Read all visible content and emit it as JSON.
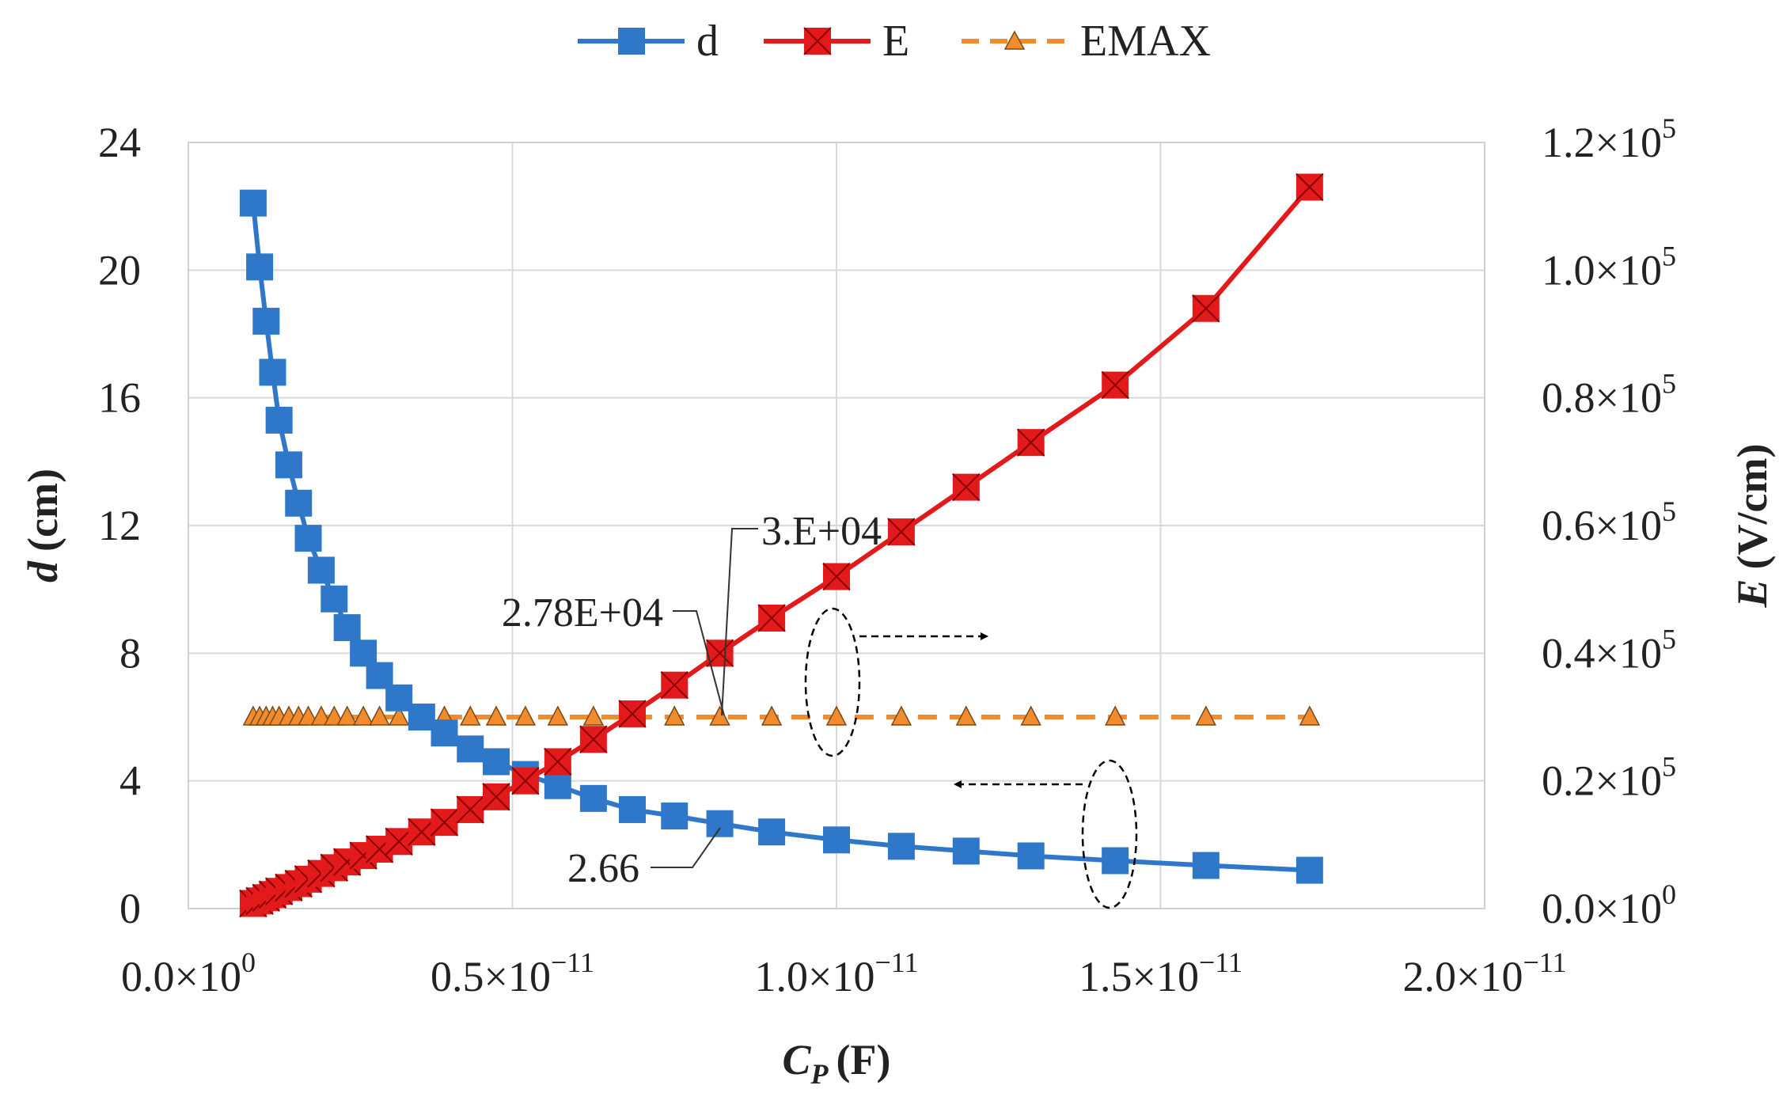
{
  "chart_data": {
    "type": "line",
    "title": "",
    "xlabel": {
      "main": "C",
      "sub": "P",
      "unit": "(F)"
    },
    "ylabel_left": {
      "main": "d",
      "unit": "(cm)"
    },
    "ylabel_right": {
      "main": "E",
      "unit": "(V/cm)"
    },
    "xlim": [
      0,
      2e-11
    ],
    "ylim_left": [
      0,
      24
    ],
    "ylim_right": [
      0,
      120000
    ],
    "grid": true,
    "legend_position": "top-center",
    "x_ticks": [
      {
        "mant": "0.0",
        "exp": "0"
      },
      {
        "mant": "0.5",
        "exp": "−11"
      },
      {
        "mant": "1.0",
        "exp": "−11"
      },
      {
        "mant": "1.5",
        "exp": "−11"
      },
      {
        "mant": "2.0",
        "exp": "−11"
      }
    ],
    "x_tick_values": [
      0,
      5e-12,
      1e-11,
      1.5e-11,
      2e-11
    ],
    "y_left_ticks": [
      "0",
      "4",
      "8",
      "12",
      "16",
      "20",
      "24"
    ],
    "y_left_tick_values": [
      0,
      4,
      8,
      12,
      16,
      20,
      24
    ],
    "y_right_ticks": [
      {
        "mant": "0.0",
        "exp": "0"
      },
      {
        "mant": "0.2",
        "exp": "5"
      },
      {
        "mant": "0.4",
        "exp": "5"
      },
      {
        "mant": "0.6",
        "exp": "5"
      },
      {
        "mant": "0.8",
        "exp": "5"
      },
      {
        "mant": "1.0",
        "exp": "5"
      },
      {
        "mant": "1.2",
        "exp": "5"
      }
    ],
    "y_right_tick_values": [
      0,
      20000,
      40000,
      60000,
      80000,
      100000,
      120000
    ],
    "x": [
      1e-12,
      1.1e-12,
      1.2e-12,
      1.3e-12,
      1.4e-12,
      1.55e-12,
      1.7e-12,
      1.85e-12,
      2.05e-12,
      2.25e-12,
      2.45e-12,
      2.7e-12,
      2.95e-12,
      3.25e-12,
      3.6e-12,
      3.95e-12,
      4.35e-12,
      4.75e-12,
      5.2e-12,
      5.7e-12,
      6.25e-12,
      6.85e-12,
      7.5e-12,
      8.2e-12,
      9e-12,
      1e-11,
      1.1e-11,
      1.2e-11,
      1.3e-11,
      1.43e-11,
      1.57e-11,
      1.73e-11
    ],
    "series": [
      {
        "name": "d",
        "axis": "left",
        "color": "#2f78c9",
        "marker": "square",
        "values": [
          22.1,
          20.1,
          18.4,
          16.8,
          15.3,
          13.9,
          12.7,
          11.6,
          10.6,
          9.7,
          8.8,
          8.0,
          7.3,
          6.6,
          6.0,
          5.5,
          5.0,
          4.6,
          4.2,
          3.85,
          3.45,
          3.1,
          2.9,
          2.66,
          2.4,
          2.15,
          1.95,
          1.8,
          1.65,
          1.5,
          1.35,
          1.2
        ]
      },
      {
        "name": "E",
        "axis": "right",
        "color": "#e31a1c",
        "marker": "x-square",
        "values": [
          800,
          1200,
          1700,
          2200,
          2700,
          3300,
          3900,
          4600,
          5500,
          6400,
          7300,
          8300,
          9300,
          10500,
          12000,
          13500,
          15500,
          17500,
          20000,
          23000,
          26500,
          30500,
          35000,
          40000,
          45500,
          52000,
          59000,
          66000,
          73000,
          82000,
          94000,
          113000
        ]
      },
      {
        "name": "EMAX",
        "axis": "right",
        "color": "#f08c2e",
        "marker": "triangle",
        "values": [
          30000,
          30000,
          30000,
          30000,
          30000,
          30000,
          30000,
          30000,
          30000,
          30000,
          30000,
          30000,
          30000,
          30000,
          30000,
          30000,
          30000,
          30000,
          30000,
          30000,
          30000,
          30000,
          30000,
          30000,
          30000,
          30000,
          30000,
          30000,
          30000,
          30000,
          30000,
          30000
        ]
      }
    ],
    "annotations": {
      "emax_label": "3.E+04",
      "intersect_label": "2.78E+04",
      "d_label": "2.66"
    }
  }
}
